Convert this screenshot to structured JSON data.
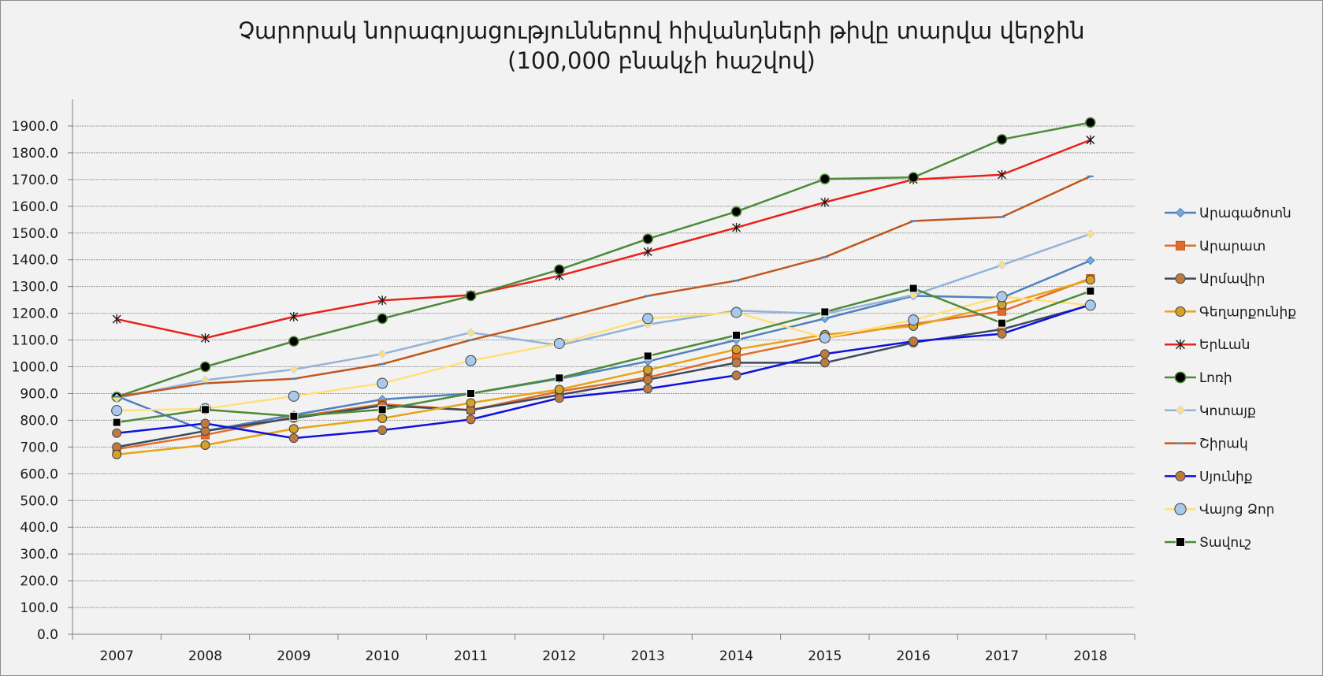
{
  "chart_data": {
    "type": "line",
    "title_line1": "Չարորակ նորագոյացություններով հիվանդների թիվը տարվա վերջին",
    "title_line2": "(100,000 բնակչի հաշվով)",
    "xlabel": "",
    "ylabel": "",
    "ylim": [
      0,
      1900
    ],
    "ytick_step": 100,
    "grid": true,
    "legend_position": "right",
    "categories": [
      "2007",
      "2008",
      "2009",
      "2010",
      "2011",
      "2012",
      "2013",
      "2014",
      "2015",
      "2016",
      "2017",
      "2018"
    ],
    "series": [
      {
        "name": "Արագածոտն",
        "color": "#4f81bd",
        "marker": "diamond",
        "values": [
          890,
          760,
          820,
          878,
          900,
          955,
          1020,
          1100,
          1180,
          1265,
          1258,
          1397
        ]
      },
      {
        "name": "Արարատ",
        "color": "#e36c2a",
        "marker": "square",
        "values": [
          692,
          745,
          812,
          860,
          838,
          908,
          960,
          1040,
          1108,
          1160,
          1207,
          1330
        ]
      },
      {
        "name": "Արմավիր",
        "color": "#3b4a5e",
        "marker": "circle-brown",
        "values": [
          700,
          760,
          808,
          855,
          838,
          895,
          952,
          1015,
          1015,
          1090,
          1140,
          1230
        ]
      },
      {
        "name": "Գեղարքունիք",
        "color": "#e8a317",
        "marker": "circle-gold",
        "values": [
          672,
          707,
          768,
          807,
          865,
          915,
          988,
          1065,
          1120,
          1152,
          1232,
          1325
        ]
      },
      {
        "name": "Երևան",
        "color": "#e8211b",
        "marker": "star",
        "values": [
          1178,
          1107,
          1187,
          1248,
          1268,
          1340,
          1430,
          1520,
          1615,
          1700,
          1718,
          1848
        ]
      },
      {
        "name": "Լոռի",
        "color": "#4e8a3a",
        "marker": "circle-black",
        "values": [
          887,
          1000,
          1095,
          1180,
          1265,
          1363,
          1478,
          1580,
          1702,
          1708,
          1850,
          1913
        ]
      },
      {
        "name": "Կոտայք",
        "color": "#95b3d7",
        "marker": "diamond-yellow",
        "values": [
          883,
          950,
          990,
          1048,
          1128,
          1080,
          1158,
          1210,
          1198,
          1268,
          1380,
          1497
        ]
      },
      {
        "name": "Շիրակ",
        "color": "#c0571d",
        "marker": "dash",
        "values": [
          888,
          938,
          955,
          1010,
          1100,
          1180,
          1265,
          1322,
          1410,
          1545,
          1560,
          1712
        ]
      },
      {
        "name": "Սյունիք",
        "color": "#1111dd",
        "marker": "circle-brown",
        "values": [
          752,
          788,
          733,
          763,
          803,
          883,
          918,
          968,
          1048,
          1095,
          1123,
          1233
        ]
      },
      {
        "name": "Վայոց Ձոր",
        "color": "#ffe07a",
        "marker": "circle-blue",
        "values": [
          836,
          843,
          890,
          938,
          1023,
          1087,
          1180,
          1203,
          1108,
          1175,
          1262,
          1230
        ]
      },
      {
        "name": "Տավուշ",
        "color": "#4e8a3a",
        "marker": "square-black",
        "values": [
          792,
          840,
          815,
          840,
          900,
          958,
          1040,
          1118,
          1205,
          1293,
          1163,
          1283
        ]
      }
    ]
  }
}
